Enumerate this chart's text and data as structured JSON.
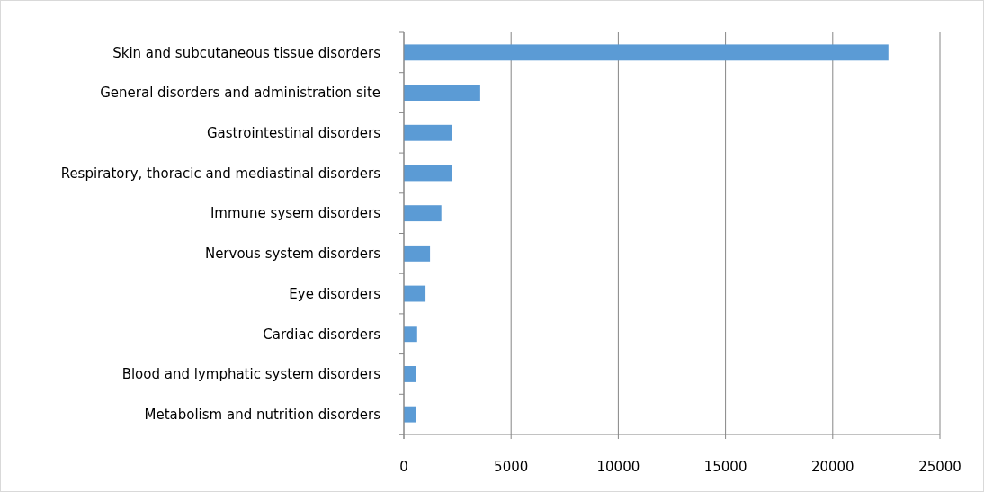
{
  "chart_data": {
    "type": "bar",
    "orientation": "horizontal",
    "categories": [
      "Skin and subcutaneous tissue disorders",
      "General disorders and administration site",
      "Gastrointestinal disorders",
      "Respiratory, thoracic and mediastinal disorders",
      "Immune sysem disorders",
      "Nervous system disorders",
      "Eye disorders",
      "Cardiac disorders",
      "Blood and lymphatic system disorders",
      "Metabolism and nutrition disorders"
    ],
    "values": [
      22600,
      3560,
      2250,
      2240,
      1750,
      1220,
      1010,
      620,
      580,
      580
    ],
    "color": "#5b9bd5",
    "xlim": [
      0,
      25000
    ],
    "xticks": [
      0,
      5000,
      10000,
      15000,
      20000,
      25000
    ],
    "grid": "x"
  }
}
